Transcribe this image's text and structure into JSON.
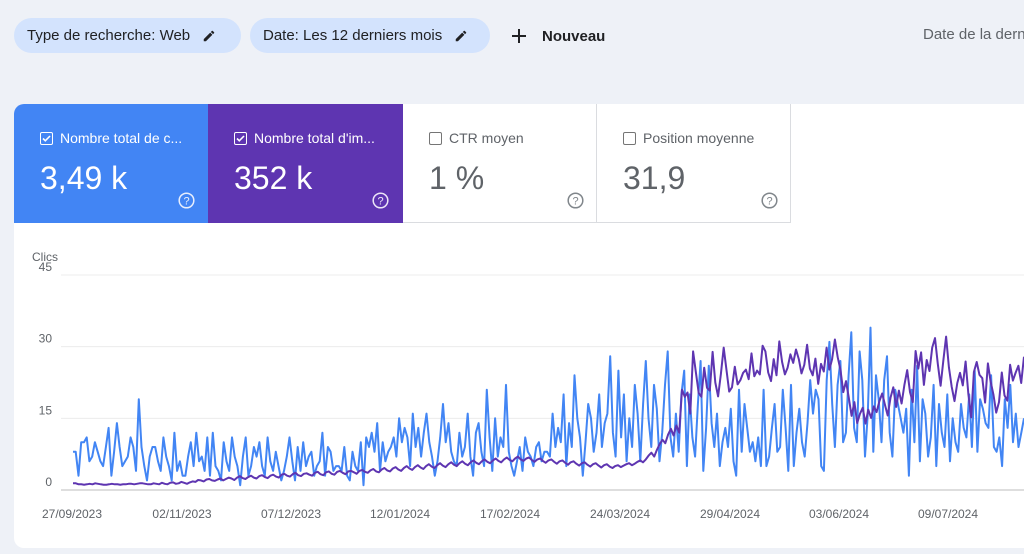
{
  "filters": {
    "search_type": "Type de recherche: Web",
    "date_range": "Date: Les 12 derniers mois",
    "new_label": "Nouveau",
    "last_update": "Date de la dern"
  },
  "metrics": [
    {
      "label": "Nombre total de c...",
      "value": "3,49 k",
      "checked": true,
      "color": "#4285f4"
    },
    {
      "label": "Nombre total d'im...",
      "value": "352 k",
      "checked": true,
      "color": "#5e35b1"
    },
    {
      "label": "CTR moyen",
      "value": "1 %",
      "checked": false
    },
    {
      "label": "Position moyenne",
      "value": "31,9",
      "checked": false
    }
  ],
  "chart_data": {
    "type": "line",
    "ylabel": "Clics",
    "y_ticks": [
      "0",
      "15",
      "30",
      "45"
    ],
    "ylim": [
      0,
      45
    ],
    "x_ticks": [
      "27/09/2023",
      "02/11/2023",
      "07/12/2023",
      "12/01/2024",
      "17/02/2024",
      "24/03/2024",
      "29/04/2024",
      "03/06/2024",
      "09/07/2024"
    ],
    "series": [
      {
        "name": "Nombre total de c...",
        "color": "#4285f4",
        "values": [
          8,
          8,
          3,
          10,
          10,
          11,
          6,
          7,
          10,
          8,
          6,
          5,
          9,
          13,
          3,
          8,
          14,
          9,
          5,
          6,
          7,
          11,
          9,
          4,
          19,
          9,
          5,
          2,
          7,
          9,
          9,
          6,
          4,
          11,
          7,
          5,
          2,
          12,
          4,
          6,
          3,
          3,
          7,
          10,
          5,
          12,
          6,
          7,
          4,
          11,
          3,
          12,
          5,
          4,
          2,
          10,
          6,
          4,
          11,
          7,
          5,
          1,
          7,
          11,
          3,
          5,
          9,
          7,
          10,
          5,
          3,
          11,
          6,
          4,
          8,
          5,
          2,
          4,
          7,
          11,
          6,
          2,
          9,
          4,
          10,
          5,
          7,
          8,
          3,
          5,
          6,
          12,
          3,
          9,
          8,
          4,
          5,
          5,
          4,
          9,
          3,
          2,
          8,
          5,
          4,
          10,
          1,
          11,
          9,
          12,
          8,
          14,
          4,
          10,
          6,
          8,
          9,
          11,
          7,
          15,
          10,
          13,
          11,
          5,
          16,
          9,
          13,
          7,
          12,
          16,
          10,
          7,
          3,
          6,
          11,
          18,
          10,
          14,
          8,
          6,
          5,
          12,
          7,
          9,
          16,
          7,
          3,
          12,
          14,
          8,
          5,
          21,
          11,
          4,
          15,
          7,
          11,
          9,
          22,
          8,
          5,
          3,
          6,
          9,
          4,
          11,
          8,
          7,
          5,
          9,
          10,
          6,
          8,
          8,
          7,
          16,
          9,
          13,
          10,
          20,
          5,
          14,
          9,
          24,
          15,
          11,
          3,
          10,
          18,
          15,
          8,
          12,
          20,
          9,
          14,
          16,
          28,
          12,
          7,
          25,
          11,
          20,
          6,
          15,
          9,
          22,
          16,
          6,
          18,
          27,
          15,
          9,
          22,
          17,
          6,
          12,
          22,
          29,
          11,
          7,
          16,
          8,
          20,
          25,
          5,
          20,
          11,
          7,
          18,
          27,
          4,
          13,
          26,
          14,
          9,
          16,
          5,
          10,
          13,
          9,
          17,
          6,
          3,
          21,
          8,
          18,
          13,
          8,
          10,
          6,
          11,
          5,
          21,
          5,
          7,
          13,
          18,
          8,
          9,
          21,
          13,
          4,
          22,
          5,
          12,
          17,
          10,
          7,
          14,
          23,
          16,
          21,
          19,
          5,
          4,
          23,
          31,
          18,
          9,
          22,
          27,
          10,
          12,
          24,
          33,
          13,
          10,
          29,
          23,
          7,
          16,
          34,
          8,
          24,
          19,
          10,
          23,
          28,
          12,
          7,
          21,
          18,
          15,
          12,
          17,
          3,
          21,
          10,
          26,
          6,
          19,
          16,
          7,
          11,
          22,
          5,
          18,
          12,
          9,
          20,
          6,
          15,
          10,
          8,
          18,
          13,
          11,
          20,
          9,
          25,
          8,
          19,
          17,
          14,
          13,
          24,
          9,
          8,
          11,
          5,
          19,
          13,
          22,
          10,
          16,
          9,
          12,
          15
        ]
      },
      {
        "name": "Nombre total d'im...",
        "color": "#5e35b1",
        "values": [
          1.4,
          1.4,
          1.2,
          1.2,
          1.1,
          1.2,
          1.3,
          1.2,
          1.4,
          1.3,
          1.2,
          1.1,
          1.1,
          1.2,
          1.3,
          1.2,
          1.2,
          1.1,
          1.2,
          1.2,
          1.3,
          1.3,
          1.2,
          1.3,
          1.4,
          1.4,
          1.3,
          1.2,
          1.2,
          1.4,
          1.3,
          1.2,
          1.5,
          1.3,
          1.2,
          1.5,
          1.6,
          1.3,
          1.4,
          1.7,
          1.5,
          1.3,
          1.6,
          1.8,
          1.7,
          2.1,
          2.0,
          1.8,
          2.2,
          2.3,
          2.0,
          1.9,
          2.2,
          2.4,
          2.0,
          2.3,
          2.6,
          2.4,
          2.1,
          2.6,
          2.9,
          2.5,
          2.3,
          2.7,
          3.0,
          2.6,
          2.4,
          2.9,
          3.1,
          2.7,
          2.5,
          3.0,
          3.2,
          2.8,
          2.6,
          3.2,
          3.4,
          3.0,
          2.8,
          3.3,
          3.6,
          3.1,
          2.9,
          3.4,
          3.5,
          3.2,
          3.0,
          3.6,
          3.8,
          3.3,
          3.1,
          3.7,
          3.9,
          3.4,
          3.2,
          3.8,
          4.0,
          3.6,
          3.3,
          3.9,
          4.0,
          3.7,
          3.4,
          4.0,
          4.2,
          3.8,
          3.6,
          4.1,
          4.4,
          3.9,
          3.7,
          4.3,
          4.6,
          4.1,
          3.9,
          4.5,
          4.8,
          4.3,
          4.0,
          4.6,
          5.0,
          4.5,
          4.2,
          4.8,
          5.2,
          4.7,
          4.4,
          5.0,
          5.4,
          4.9,
          4.6,
          5.2,
          5.6,
          5.1,
          4.8,
          5.4,
          5.8,
          5.3,
          5.0,
          5.6,
          6.0,
          5.5,
          5.2,
          5.8,
          6.2,
          5.7,
          5.4,
          6.0,
          6.4,
          5.9,
          5.6,
          6.2,
          6.6,
          6.1,
          5.8,
          6.4,
          6.8,
          6.3,
          6.0,
          6.6,
          7.0,
          6.4,
          6.1,
          6.6,
          6.8,
          6.3,
          5.9,
          6.4,
          6.6,
          6.1,
          5.7,
          6.2,
          6.4,
          5.9,
          5.5,
          6.0,
          6.2,
          5.7,
          5.3,
          5.8,
          6.0,
          5.5,
          5.1,
          5.6,
          5.8,
          5.3,
          4.9,
          5.4,
          5.6,
          5.1,
          4.7,
          5.2,
          5.4,
          4.9,
          4.6,
          5.0,
          5.2,
          4.8,
          5.1,
          5.4,
          5.6,
          5.2,
          5.5,
          5.9,
          6.2,
          5.8,
          6.4,
          7.2,
          7.8,
          7.0,
          8.4,
          9.6,
          10.5,
          9.8,
          11.6,
          12.8,
          11.4,
          13.5,
          12.0,
          21.0,
          19.5,
          20.4,
          16.0,
          29.0,
          24.6,
          20.3,
          19.5,
          25.6,
          21.4,
          20.8,
          28.9,
          22.5,
          19.6,
          24.3,
          29.8,
          25.1,
          20.6,
          21.5,
          25.8,
          22.1,
          23.0,
          24.5,
          25.2,
          23.2,
          28.6,
          23.8,
          25.0,
          24.2,
          30.2,
          29.0,
          24.6,
          22.8,
          27.4,
          24.0,
          31.1,
          26.8,
          24.2,
          25.6,
          28.4,
          26.6,
          29.4,
          27.4,
          24.4,
          26.2,
          30.4,
          25.4,
          24.0,
          27.5,
          22.2,
          26.4,
          24.8,
          29.8,
          25.2,
          27.4,
          31.5,
          27.8,
          25.1,
          20.5,
          22.8,
          19.3,
          15.5,
          18.4,
          14.0,
          15.9,
          17.2,
          13.9,
          16.8,
          15.1,
          17.5,
          16.3,
          18.6,
          20.2,
          17.8,
          15.6,
          19.3,
          21.5,
          17.4,
          20.8,
          18.1,
          22.0,
          25.1,
          20.5,
          18.4,
          29.1,
          25.4,
          28.8,
          22.0,
          27.2,
          24.9,
          29.8,
          31.8,
          26.4,
          21.8,
          27.2,
          32.1,
          25.7,
          21.6,
          18.6,
          22.4,
          24.5,
          21.9,
          26.9,
          20.0,
          15.2,
          24.7,
          26.8,
          24.1,
          23.4,
          18.3,
          26.5,
          22.7,
          20.0,
          16.2,
          18.4,
          24.6,
          19.8,
          18.7,
          26.2,
          22.9,
          24.6,
          26.0,
          22.4,
          27.9
        ]
      }
    ]
  }
}
